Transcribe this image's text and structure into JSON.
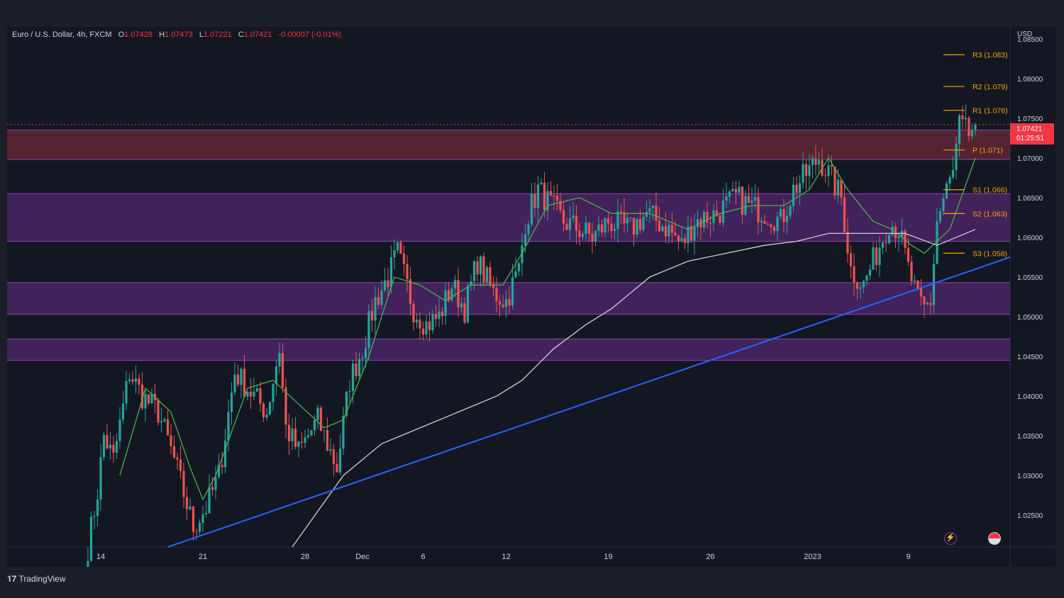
{
  "header": {
    "symbol": "Euro / U.S. Dollar, 4h, FXCM",
    "open_label": "O",
    "open": "1.07428",
    "high_label": "H",
    "high": "1.07473",
    "low_label": "L",
    "low": "1.07221",
    "close_label": "C",
    "close": "1.07421",
    "change": "-0.00007 (-0.01%)"
  },
  "price_axis": {
    "currency": "USD",
    "last_price": "1.07421",
    "countdown": "01:25:51"
  },
  "branding": {
    "logo": "TradingView"
  },
  "colors": {
    "background": "#131722",
    "up_candle": "#26a69a",
    "down_candle": "#ef5350",
    "trendline": "#2962ff",
    "zone": "#6a2c8a",
    "resistance_zone": "#8a2b3e",
    "pivot": "#f7a600",
    "ma_fast": "#4caf50",
    "ma_slow": "#d0d0d0"
  },
  "chart_data": {
    "type": "candlestick",
    "ylim": [
      1.021,
      1.0865
    ],
    "y_ticks": [
      "1.08500",
      "1.08000",
      "1.07500",
      "1.07000",
      "1.06500",
      "1.06000",
      "1.05500",
      "1.05000",
      "1.04500",
      "1.04000",
      "1.03500",
      "1.03000",
      "1.02500"
    ],
    "x_ticks": [
      {
        "label": "14",
        "bar": 4
      },
      {
        "label": "21",
        "bar": 36
      },
      {
        "label": "28",
        "bar": 68
      },
      {
        "label": "Dec",
        "bar": 86
      },
      {
        "label": "6",
        "bar": 105
      },
      {
        "label": "12",
        "bar": 131
      },
      {
        "label": "19",
        "bar": 163
      },
      {
        "label": "26",
        "bar": 195
      },
      {
        "label": "2023",
        "bar": 227
      },
      {
        "label": "9",
        "bar": 257
      }
    ],
    "pivots": [
      {
        "label": "R3 (1.083)",
        "value": 1.083
      },
      {
        "label": "R2 (1.079)",
        "value": 1.079
      },
      {
        "label": "R1 (1.076)",
        "value": 1.076
      },
      {
        "label": "P (1.071)",
        "value": 1.071
      },
      {
        "label": "S1 (1.066)",
        "value": 1.066
      },
      {
        "label": "S2 (1.063)",
        "value": 1.063
      },
      {
        "label": "S3 (1.058)",
        "value": 1.058
      }
    ],
    "zones": [
      {
        "from": 1.0698,
        "to": 1.0735,
        "kind": "resistance"
      },
      {
        "from": 1.0595,
        "to": 1.0655,
        "kind": "range"
      },
      {
        "from": 1.0503,
        "to": 1.0543,
        "kind": "range"
      },
      {
        "from": 1.0445,
        "to": 1.0472,
        "kind": "range"
      }
    ],
    "trendline": {
      "start": {
        "bar": 25,
        "price": 1.021
      },
      "end": {
        "bar": 289,
        "price": 1.0575
      }
    },
    "anchors": [
      [
        0,
        1.021
      ],
      [
        3,
        1.028
      ],
      [
        5,
        1.035
      ],
      [
        8,
        1.032
      ],
      [
        13,
        1.043
      ],
      [
        17,
        1.04
      ],
      [
        22,
        1.038
      ],
      [
        27,
        1.032
      ],
      [
        33,
        1.0235
      ],
      [
        37,
        1.026
      ],
      [
        41,
        1.03
      ],
      [
        46,
        1.043
      ],
      [
        52,
        1.04
      ],
      [
        56,
        1.038
      ],
      [
        60,
        1.046
      ],
      [
        62,
        1.036
      ],
      [
        66,
        1.033
      ],
      [
        72,
        1.037
      ],
      [
        76,
        1.033
      ],
      [
        78,
        1.031
      ],
      [
        82,
        1.042
      ],
      [
        86,
        1.046
      ],
      [
        90,
        1.052
      ],
      [
        94,
        1.055
      ],
      [
        97,
        1.058
      ],
      [
        102,
        1.051
      ],
      [
        106,
        1.049
      ],
      [
        110,
        1.05
      ],
      [
        114,
        1.054
      ],
      [
        118,
        1.051
      ],
      [
        122,
        1.057
      ],
      [
        127,
        1.053
      ],
      [
        131,
        1.052
      ],
      [
        135,
        1.056
      ],
      [
        137,
        1.062
      ],
      [
        141,
        1.066
      ],
      [
        145,
        1.064
      ],
      [
        149,
        1.062
      ],
      [
        154,
        1.061
      ],
      [
        158,
        1.06
      ],
      [
        163,
        1.062
      ],
      [
        170,
        1.061
      ],
      [
        175,
        1.063
      ],
      [
        182,
        1.061
      ],
      [
        186,
        1.059
      ],
      [
        190,
        1.062
      ],
      [
        197,
        1.063
      ],
      [
        203,
        1.065
      ],
      [
        207,
        1.064
      ],
      [
        213,
        1.063
      ],
      [
        217,
        1.062
      ],
      [
        221,
        1.066
      ],
      [
        225,
        1.068
      ],
      [
        229,
        1.07
      ],
      [
        232,
        1.068
      ],
      [
        236,
        1.065
      ],
      [
        239,
        1.056
      ],
      [
        243,
        1.054
      ],
      [
        247,
        1.058
      ],
      [
        251,
        1.062
      ],
      [
        254,
        1.061
      ],
      [
        257,
        1.056
      ],
      [
        260,
        1.052
      ],
      [
        262,
        1.051
      ],
      [
        264,
        1.052
      ],
      [
        266,
        1.062
      ],
      [
        269,
        1.066
      ],
      [
        271,
        1.068
      ],
      [
        273,
        1.074
      ],
      [
        276,
        1.073
      ],
      [
        278,
        1.0742
      ]
    ],
    "ma_fast": [
      [
        10,
        1.03
      ],
      [
        18,
        1.041
      ],
      [
        26,
        1.038
      ],
      [
        32,
        1.031
      ],
      [
        36,
        1.027
      ],
      [
        40,
        1.03
      ],
      [
        50,
        1.041
      ],
      [
        58,
        1.042
      ],
      [
        66,
        1.039
      ],
      [
        74,
        1.036
      ],
      [
        80,
        1.037
      ],
      [
        88,
        1.045
      ],
      [
        96,
        1.055
      ],
      [
        104,
        1.054
      ],
      [
        112,
        1.052
      ],
      [
        120,
        1.054
      ],
      [
        130,
        1.054
      ],
      [
        136,
        1.058
      ],
      [
        144,
        1.064
      ],
      [
        154,
        1.065
      ],
      [
        164,
        1.063
      ],
      [
        176,
        1.063
      ],
      [
        188,
        1.061
      ],
      [
        198,
        1.063
      ],
      [
        208,
        1.064
      ],
      [
        218,
        1.064
      ],
      [
        226,
        1.066
      ],
      [
        232,
        1.07
      ],
      [
        238,
        1.066
      ],
      [
        246,
        1.062
      ],
      [
        252,
        1.061
      ],
      [
        258,
        1.059
      ],
      [
        262,
        1.058
      ],
      [
        270,
        1.061
      ],
      [
        278,
        1.07
      ]
    ],
    "ma_slow": [
      [
        64,
        1.021
      ],
      [
        80,
        1.03
      ],
      [
        92,
        1.034
      ],
      [
        104,
        1.036
      ],
      [
        116,
        1.038
      ],
      [
        128,
        1.04
      ],
      [
        136,
        1.042
      ],
      [
        146,
        1.046
      ],
      [
        156,
        1.049
      ],
      [
        164,
        1.051
      ],
      [
        176,
        1.055
      ],
      [
        188,
        1.057
      ],
      [
        200,
        1.058
      ],
      [
        212,
        1.059
      ],
      [
        222,
        1.0595
      ],
      [
        232,
        1.0605
      ],
      [
        244,
        1.0605
      ],
      [
        256,
        1.0605
      ],
      [
        266,
        1.059
      ],
      [
        278,
        1.061
      ]
    ]
  }
}
